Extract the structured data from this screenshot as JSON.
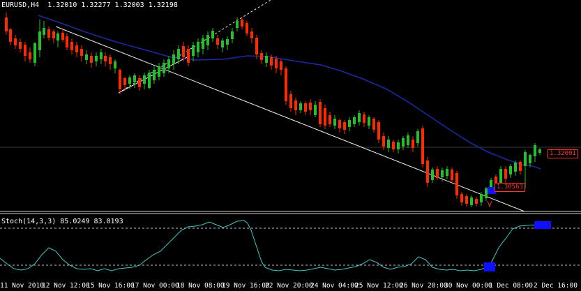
{
  "window": {
    "symbol_header": "EURUSD,H4  1.32010 1.32277 1.32003 1.32198"
  },
  "price_tags": {
    "current": "1.32001",
    "low": "1.30563"
  },
  "stochastic": {
    "header": "Stoch(14,3,3) 85.0249 83.0193",
    "upper_level": 80,
    "lower_level": 20
  },
  "time_axis": [
    "11 Nov 2010",
    "12 Nov 12:00",
    "15 Nov 16:00",
    "17 Nov 00:00",
    "18 Nov 08:00",
    "19 Nov 16:00",
    "22 Nov 20:00",
    "24 Nov 04:00",
    "25 Nov 12:00",
    "26 Nov 20:00",
    "30 Nov 00:00",
    "1 Dec 08:00",
    "2 Dec 16:00"
  ],
  "colors": {
    "background": "#000000",
    "bull_candle": "#22c02a",
    "bear_candle": "#ff2a00",
    "moving_average": "#1c2aa0",
    "trendline": "#f0f0e8",
    "stoch_line": "#40c8c8",
    "level_line": "#c0c0c0",
    "marker": "#1010ff",
    "price_tag": "#ff3030"
  }
}
